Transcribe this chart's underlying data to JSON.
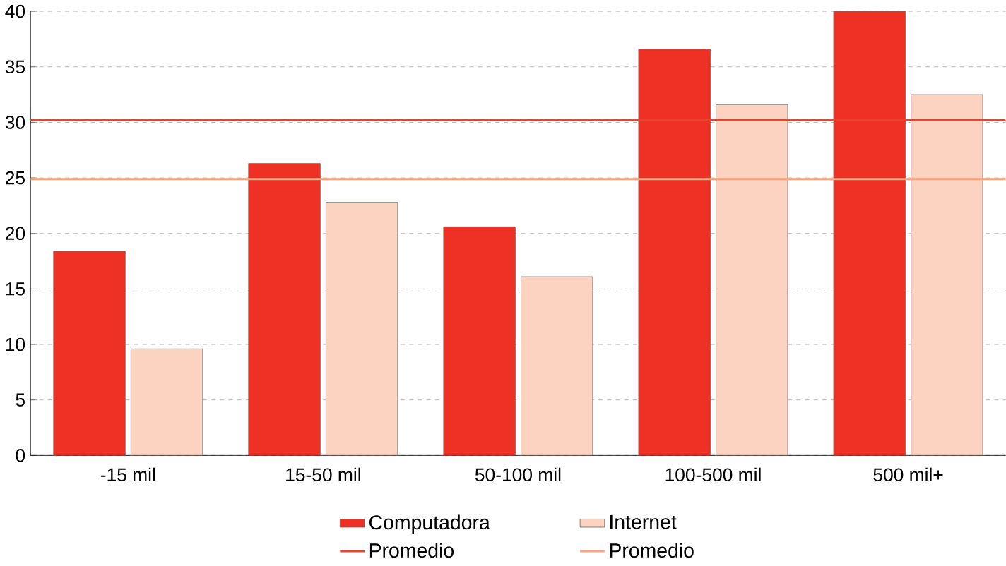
{
  "chart_data": {
    "type": "bar",
    "categories": [
      "-15 mil",
      "15-50 mil",
      "50-100 mil",
      "100-500 mil",
      "500 mil+"
    ],
    "series": [
      {
        "name": "Computadora",
        "color": "#ee3124",
        "values": [
          18.4,
          26.3,
          20.6,
          36.6,
          40
        ]
      },
      {
        "name": "Internet",
        "color": "#fcd3c0",
        "values": [
          9.6,
          22.8,
          16.1,
          31.6,
          32.5
        ]
      }
    ],
    "ref_lines": [
      {
        "axis": "y",
        "value": 30.2,
        "label": "Promedio",
        "color": "#e8432f"
      },
      {
        "axis": "y",
        "value": 24.9,
        "label": "Promedio",
        "color": "#f7a47f"
      }
    ],
    "ylim": [
      0,
      40
    ],
    "yticks": [
      0,
      5,
      10,
      15,
      20,
      25,
      30,
      35,
      40
    ],
    "grid": "y",
    "legend": "bottom"
  }
}
